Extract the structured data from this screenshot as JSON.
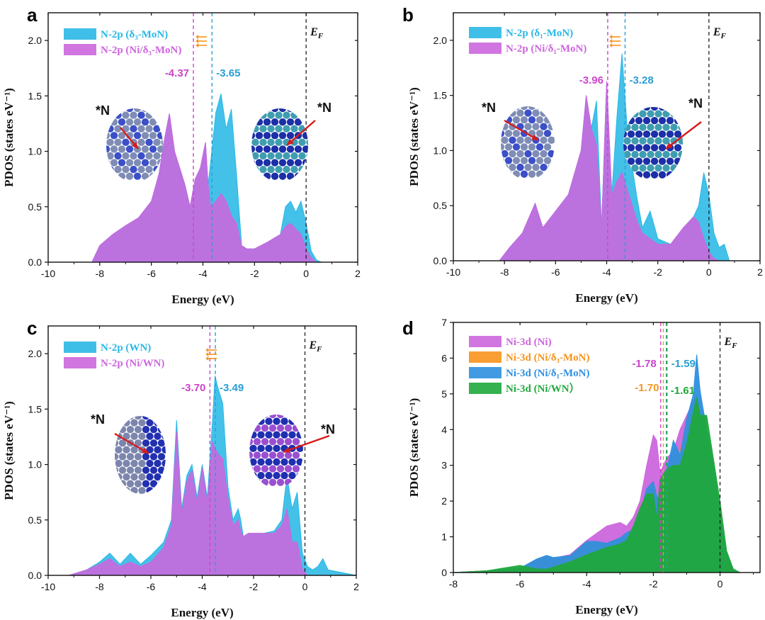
{
  "figure": {
    "panel_labels": [
      "a",
      "b",
      "c",
      "d"
    ]
  },
  "colors": {
    "cyan": "#2ab8e6",
    "magenta": "#cc66dd",
    "orange": "#f7941d",
    "blue_ni": "#2e8fe0",
    "green": "#1fa83c",
    "ef_line": "#222222",
    "dash_mag": "#cc44cc",
    "dash_cyan": "#2a9fd6",
    "arrow_red": "#d81b1b"
  },
  "chart_data": [
    {
      "panel": "a",
      "type": "area",
      "xlabel": "Energy (eV)",
      "ylabel": "PDOS (states eV⁻¹)",
      "xlim": [
        -10,
        2
      ],
      "ylim": [
        0,
        2.25
      ],
      "xticks": [
        "-10",
        "-8",
        "-6",
        "-4",
        "-2",
        "0",
        "2"
      ],
      "yticks": [
        "0.0",
        "0.5",
        "1.0",
        "1.5",
        "2.0"
      ],
      "fermi_label": "E",
      "fermi_sub": "F",
      "series": [
        {
          "name": "N-2p (δ₃-MoN)",
          "color": "#2ab8e6",
          "x": [
            -10,
            -8.3,
            -8.0,
            -7.5,
            -7.0,
            -6.5,
            -6.0,
            -5.7,
            -5.5,
            -5.3,
            -5.1,
            -4.9,
            -4.7,
            -4.5,
            -4.3,
            -4.1,
            -3.9,
            -3.8,
            -3.7,
            -3.5,
            -3.3,
            -3.1,
            -2.9,
            -2.7,
            -2.5,
            -2.3,
            -2.0,
            -1.5,
            -1.0,
            -0.8,
            -0.6,
            -0.4,
            -0.2,
            0,
            0.2,
            0.4,
            0.6,
            2
          ],
          "y": [
            0,
            0,
            0.15,
            0.25,
            0.33,
            0.4,
            0.55,
            0.8,
            1.1,
            1.34,
            1.0,
            0.85,
            0.7,
            0.5,
            0.75,
            0.85,
            1.08,
            0.7,
            0.9,
            1.35,
            1.52,
            1.2,
            1.38,
            0.8,
            0.15,
            0.12,
            0.12,
            0.18,
            0.25,
            0.5,
            0.55,
            0.45,
            0.55,
            0.35,
            0.1,
            0.02,
            0,
            0
          ]
        },
        {
          "name": "N-2p (Ni/δ₃-MoN)",
          "color": "#cc66dd",
          "x": [
            -10,
            -8.3,
            -8.0,
            -7.5,
            -7.0,
            -6.5,
            -6.0,
            -5.7,
            -5.5,
            -5.3,
            -5.1,
            -4.9,
            -4.7,
            -4.5,
            -4.3,
            -4.1,
            -3.9,
            -3.8,
            -3.7,
            -3.5,
            -3.3,
            -3.1,
            -2.9,
            -2.7,
            -2.5,
            -2.3,
            -2.0,
            -1.5,
            -1.0,
            -0.8,
            -0.6,
            -0.4,
            -0.2,
            0,
            0.2,
            0.4,
            0.6,
            2
          ],
          "y": [
            0,
            0,
            0.15,
            0.25,
            0.33,
            0.4,
            0.55,
            0.8,
            1.1,
            1.34,
            1.0,
            0.85,
            0.7,
            0.5,
            0.75,
            0.85,
            1.08,
            0.7,
            0.5,
            0.55,
            0.62,
            0.55,
            0.42,
            0.35,
            0.15,
            0.12,
            0.12,
            0.18,
            0.25,
            0.32,
            0.35,
            0.3,
            0.25,
            0.12,
            0.04,
            0,
            0,
            0
          ]
        }
      ],
      "vlines": [
        {
          "x": -4.37,
          "label": "-4.37",
          "color": "#cc44cc"
        },
        {
          "x": -3.65,
          "label": "-3.65",
          "color": "#2a9fd6"
        }
      ],
      "atom_annotations": [
        "*N",
        "*N"
      ]
    },
    {
      "panel": "b",
      "type": "area",
      "xlabel": "Energy (eV)",
      "ylabel": "PDOS (states eV⁻¹)",
      "xlim": [
        -10,
        2
      ],
      "ylim": [
        0,
        2.25
      ],
      "xticks": [
        "-10",
        "-8",
        "-6",
        "-4",
        "-2",
        "0",
        "2"
      ],
      "yticks": [
        "0.0",
        "0.5",
        "1.0",
        "1.5",
        "2.0"
      ],
      "fermi_label": "E",
      "fermi_sub": "F",
      "series": [
        {
          "name": "N-2p (δ₁-MoN)",
          "color": "#2ab8e6",
          "x": [
            -10,
            -8.2,
            -7.8,
            -7.3,
            -6.8,
            -6.5,
            -6.0,
            -5.5,
            -5.0,
            -4.8,
            -4.6,
            -4.4,
            -4.2,
            -4.0,
            -3.8,
            -3.6,
            -3.4,
            -3.2,
            -3.0,
            -2.8,
            -2.6,
            -2.3,
            -2.0,
            -1.5,
            -1.0,
            -0.6,
            -0.4,
            -0.2,
            0,
            0.2,
            0.4,
            0.6,
            0.8,
            2
          ],
          "y": [
            0,
            0,
            0.12,
            0.25,
            0.52,
            0.3,
            0.45,
            0.6,
            1.0,
            1.5,
            1.2,
            1.45,
            0.3,
            1.63,
            0.6,
            1.3,
            1.88,
            1.2,
            0.85,
            0.55,
            0.3,
            0.45,
            0.2,
            0.15,
            0.3,
            0.4,
            0.5,
            0.8,
            0.6,
            0.25,
            0.12,
            0.15,
            0,
            0
          ]
        },
        {
          "name": "N-2p (Ni/δ₁-MoN)",
          "color": "#cc66dd",
          "x": [
            -10,
            -8.2,
            -7.8,
            -7.3,
            -6.8,
            -6.5,
            -6.0,
            -5.5,
            -5.0,
            -4.8,
            -4.6,
            -4.4,
            -4.2,
            -4.0,
            -3.8,
            -3.6,
            -3.4,
            -3.2,
            -3.0,
            -2.8,
            -2.6,
            -2.3,
            -2.0,
            -1.5,
            -1.0,
            -0.6,
            -0.4,
            -0.2,
            0,
            0.2,
            0.4,
            0.6,
            0.8,
            2
          ],
          "y": [
            0,
            0,
            0.12,
            0.25,
            0.52,
            0.3,
            0.45,
            0.6,
            1.0,
            1.5,
            1.2,
            1.05,
            0.3,
            1.63,
            0.6,
            0.72,
            0.8,
            0.65,
            0.5,
            0.35,
            0.25,
            0.2,
            0.15,
            0.15,
            0.3,
            0.4,
            0.35,
            0.2,
            0.08,
            0.02,
            0,
            0,
            0,
            0
          ]
        }
      ],
      "vlines": [
        {
          "x": -3.96,
          "label": "-3.96",
          "color": "#cc44cc"
        },
        {
          "x": -3.28,
          "label": "-3.28",
          "color": "#2a9fd6"
        }
      ],
      "atom_annotations": [
        "*N",
        "*N"
      ]
    },
    {
      "panel": "c",
      "type": "area",
      "xlabel": "Energy (eV)",
      "ylabel": "PDOS (states eV⁻¹)",
      "xlim": [
        -10,
        2
      ],
      "ylim": [
        0,
        2.25
      ],
      "xticks": [
        "-10",
        "-8",
        "-6",
        "-4",
        "-2",
        "0",
        "2"
      ],
      "yticks": [
        "0.0",
        "0.5",
        "1.0",
        "1.5",
        "2.0"
      ],
      "fermi_label": "E",
      "fermi_sub": "F",
      "series": [
        {
          "name": "N-2p (WN)",
          "color": "#2ab8e6",
          "x": [
            -10,
            -9.2,
            -8.5,
            -8.0,
            -7.6,
            -7.2,
            -6.8,
            -6.4,
            -6.0,
            -5.5,
            -5.2,
            -5.0,
            -4.8,
            -4.6,
            -4.4,
            -4.2,
            -4.0,
            -3.8,
            -3.6,
            -3.5,
            -3.4,
            -3.2,
            -3.0,
            -2.8,
            -2.6,
            -2.5,
            -2.4,
            -2.2,
            -2.0,
            -1.6,
            -1.2,
            -0.9,
            -0.7,
            -0.5,
            -0.3,
            -0.1,
            0.1,
            0.3,
            0.5,
            0.7,
            0.9,
            2
          ],
          "y": [
            0,
            0,
            0.05,
            0.12,
            0.2,
            0.1,
            0.2,
            0.1,
            0.18,
            0.3,
            0.5,
            1.4,
            0.6,
            0.9,
            1.0,
            0.7,
            1.0,
            0.7,
            1.4,
            1.8,
            1.7,
            1.55,
            0.8,
            0.5,
            0.6,
            0.5,
            0.35,
            0.38,
            0.38,
            0.38,
            0.4,
            0.5,
            0.9,
            0.6,
            0.75,
            0.2,
            0.08,
            0.05,
            0.08,
            0.15,
            0.05,
            0
          ]
        },
        {
          "name": "N-2p (Ni/WN)",
          "color": "#cc66dd",
          "x": [
            -10,
            -9.2,
            -8.5,
            -8.0,
            -7.6,
            -7.2,
            -6.8,
            -6.4,
            -6.0,
            -5.5,
            -5.2,
            -5.0,
            -4.8,
            -4.6,
            -4.4,
            -4.2,
            -4.0,
            -3.8,
            -3.6,
            -3.5,
            -3.4,
            -3.2,
            -3.0,
            -2.8,
            -2.6,
            -2.5,
            -2.4,
            -2.2,
            -2.0,
            -1.6,
            -1.2,
            -0.9,
            -0.7,
            -0.5,
            -0.3,
            -0.1,
            0.1,
            0.3,
            0.5,
            0.7,
            0.9,
            2
          ],
          "y": [
            0,
            0,
            0.05,
            0.1,
            0.15,
            0.08,
            0.12,
            0.08,
            0.12,
            0.25,
            0.45,
            1.3,
            0.55,
            0.85,
            0.95,
            0.65,
            0.97,
            0.65,
            1.2,
            1.15,
            1.1,
            1.05,
            0.7,
            0.45,
            0.5,
            0.4,
            0.35,
            0.38,
            0.38,
            0.38,
            0.38,
            0.45,
            0.6,
            0.3,
            0.3,
            0.05,
            0,
            0,
            0,
            0,
            0,
            0
          ]
        }
      ],
      "vlines": [
        {
          "x": -3.7,
          "label": "-3.70",
          "color": "#cc44cc"
        },
        {
          "x": -3.49,
          "label": "-3.49",
          "color": "#2a9fd6"
        }
      ],
      "atom_annotations": [
        "*N",
        "*N"
      ]
    },
    {
      "panel": "d",
      "type": "area",
      "xlabel": "Energy (eV)",
      "ylabel": "PDOS (states eV⁻¹)",
      "xlim": [
        -8,
        1.2
      ],
      "ylim": [
        0,
        7
      ],
      "xticks": [
        "-8",
        "-6",
        "-4",
        "-2",
        "0"
      ],
      "yticks": [
        "0",
        "1",
        "2",
        "3",
        "4",
        "5",
        "6",
        "7"
      ],
      "fermi_label": "E",
      "fermi_sub": "F",
      "series": [
        {
          "name": "Ni-3d (Ni)",
          "color": "#cc66dd",
          "x": [
            -8,
            -7,
            -6,
            -5.5,
            -5.2,
            -5.0,
            -4.5,
            -4.0,
            -3.7,
            -3.4,
            -3.0,
            -2.8,
            -2.6,
            -2.4,
            -2.2,
            -2.0,
            -1.9,
            -1.8,
            -1.6,
            -1.4,
            -1.2,
            -1.0,
            -0.8,
            -0.7,
            -0.6,
            -0.4,
            -0.2,
            0,
            0.2,
            0.4,
            0.6
          ],
          "y": [
            0,
            0.05,
            0.1,
            0.35,
            0.45,
            0.4,
            0.5,
            0.9,
            1.1,
            1.3,
            1.4,
            1.3,
            1.55,
            2.0,
            3.0,
            3.85,
            3.7,
            2.8,
            3.2,
            3.4,
            4.0,
            4.4,
            4.8,
            4.95,
            4.7,
            3.9,
            3.0,
            1.7,
            0.5,
            0.05,
            0
          ]
        },
        {
          "name": "Ni-3d (Ni/δ₃-MoN)",
          "color": "#f7941d",
          "x": [
            -8,
            -7,
            -6,
            -5.5,
            -5.2,
            -5.0,
            -4.5,
            -4.0,
            -3.7,
            -3.4,
            -3.0,
            -2.8,
            -2.6,
            -2.4,
            -2.2,
            -2.0,
            -1.9,
            -1.8,
            -1.6,
            -1.4,
            -1.2,
            -1.0,
            -0.8,
            -0.7,
            -0.6,
            -0.4,
            -0.2,
            0,
            0.2,
            0.4,
            0.6
          ],
          "y": [
            0,
            0.05,
            0.1,
            0.35,
            0.45,
            0.4,
            0.45,
            0.85,
            0.85,
            0.8,
            0.95,
            1.1,
            1.15,
            1.6,
            2.3,
            2.5,
            2.1,
            1.9,
            2.8,
            3.3,
            3.4,
            4.2,
            4.8,
            4.95,
            4.7,
            3.9,
            2.9,
            1.6,
            0.5,
            0.05,
            0
          ]
        },
        {
          "name": "Ni-3d (Ni/δ₁-MoN)",
          "color": "#2e8fe0",
          "x": [
            -8,
            -7,
            -6,
            -5.5,
            -5.2,
            -5.0,
            -4.5,
            -4.0,
            -3.7,
            -3.4,
            -3.0,
            -2.8,
            -2.6,
            -2.4,
            -2.2,
            -2.0,
            -1.9,
            -1.8,
            -1.6,
            -1.4,
            -1.2,
            -1.0,
            -0.8,
            -0.7,
            -0.6,
            -0.4,
            -0.2,
            0,
            0.2,
            0.4,
            0.6
          ],
          "y": [
            0,
            0.05,
            0.12,
            0.38,
            0.48,
            0.42,
            0.47,
            0.87,
            0.87,
            0.82,
            0.97,
            1.12,
            1.2,
            1.65,
            2.35,
            2.55,
            2.15,
            1.95,
            2.85,
            3.7,
            3.3,
            4.3,
            5.0,
            6.1,
            5.1,
            4.0,
            3.0,
            1.65,
            0.55,
            0.05,
            0
          ]
        },
        {
          "name": "Ni-3d (Ni/WN）",
          "color": "#1fa83c",
          "x": [
            -8,
            -7,
            -6,
            -5.5,
            -5.2,
            -5.0,
            -4.5,
            -4.0,
            -3.7,
            -3.4,
            -3.0,
            -2.8,
            -2.6,
            -2.4,
            -2.2,
            -2.0,
            -1.9,
            -1.8,
            -1.6,
            -1.4,
            -1.2,
            -1.0,
            -0.8,
            -0.7,
            -0.6,
            -0.4,
            -0.2,
            0,
            0.2,
            0.4,
            0.6
          ],
          "y": [
            0,
            0.05,
            0.2,
            0.1,
            0.1,
            0.15,
            0.3,
            0.5,
            0.6,
            0.7,
            0.8,
            0.9,
            1.3,
            1.8,
            2.2,
            2.2,
            1.5,
            2.6,
            2.9,
            3.0,
            3.0,
            3.6,
            4.5,
            4.9,
            4.4,
            4.4,
            3.2,
            2.0,
            0.6,
            0.1,
            0
          ]
        }
      ],
      "vlines": [
        {
          "x": -1.78,
          "label": "-1.78",
          "color": "#cc44cc"
        },
        {
          "x": -1.7,
          "label": "-1.70",
          "color": "#f7941d"
        },
        {
          "x": -1.59,
          "label": "-1.59",
          "color": "#2a9fd6"
        },
        {
          "x": -1.61,
          "label": "-1.61",
          "color": "#1fa83c"
        }
      ]
    }
  ]
}
